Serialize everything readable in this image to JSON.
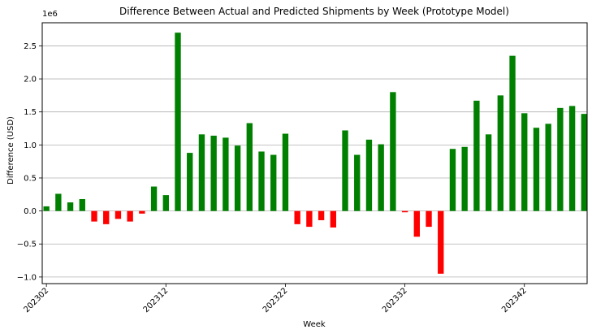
{
  "chart_data": {
    "type": "bar",
    "title": "Difference Between Actual and Predicted Shipments by Week (Prototype Model)",
    "xlabel": "Week",
    "ylabel": "Difference (USD)",
    "y_scale_label": "1e6",
    "ylim": [
      -1100000,
      2850000
    ],
    "yticks": [
      -1000000,
      -500000,
      0,
      500000,
      1000000,
      1500000,
      2000000,
      2500000
    ],
    "ytick_labels": [
      "−1.0",
      "−0.5",
      "0.0",
      "0.5",
      "1.0",
      "1.5",
      "2.0",
      "2.5"
    ],
    "grid": "horizontal",
    "positive_color": "#008000",
    "negative_color": "#ff0000",
    "xtick_labels": [
      {
        "index": 0,
        "label": "202302"
      },
      {
        "index": 10,
        "label": "202312"
      },
      {
        "index": 20,
        "label": "202322"
      },
      {
        "index": 30,
        "label": "202332"
      },
      {
        "index": 40,
        "label": "202342"
      }
    ],
    "weeks": [
      "202302",
      "202303",
      "202304",
      "202305",
      "202306",
      "202307",
      "202308",
      "202309",
      "202310",
      "202311",
      "202312",
      "202313",
      "202314",
      "202315",
      "202316",
      "202317",
      "202318",
      "202319",
      "202320",
      "202321",
      "202322",
      "202323",
      "202324",
      "202325",
      "202326",
      "202327",
      "202328",
      "202329",
      "202330",
      "202331",
      "202332",
      "202333",
      "202334",
      "202335",
      "202336",
      "202337",
      "202338",
      "202339",
      "202340",
      "202341",
      "202342",
      "202343",
      "202344",
      "202345",
      "202346",
      "202347"
    ],
    "values": [
      70000,
      260000,
      130000,
      180000,
      -160000,
      -200000,
      -120000,
      -160000,
      -40000,
      370000,
      240000,
      2700000,
      880000,
      1160000,
      1140000,
      1110000,
      990000,
      1330000,
      900000,
      850000,
      1170000,
      -200000,
      -240000,
      -140000,
      -250000,
      1220000,
      850000,
      1080000,
      1010000,
      1800000,
      -20000,
      -390000,
      -240000,
      -950000,
      940000,
      970000,
      1670000,
      1160000,
      1750000,
      2350000,
      1480000,
      1260000,
      1320000,
      1560000,
      1590000,
      1470000
    ]
  }
}
